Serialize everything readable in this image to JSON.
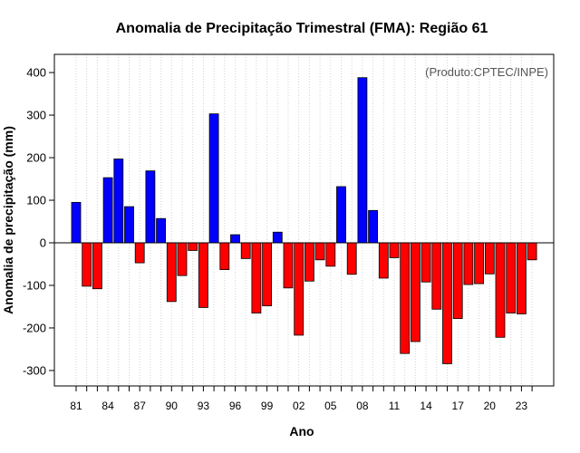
{
  "chart_data": {
    "type": "bar",
    "title": "Anomalia de Precipitação Trimestral (FMA): Região 61",
    "xlabel": "Ano",
    "ylabel": "Anomalia de precipitação (mm)",
    "annotation": "(Produto:CPTEC/INPE)",
    "ylim": [
      -330,
      430
    ],
    "yticks": [
      -300,
      -200,
      -100,
      0,
      100,
      200,
      300,
      400
    ],
    "grid": "vertical dotted",
    "positive_color": "#0000ff",
    "negative_color": "#ff0000",
    "categories": [
      "1981",
      "1982",
      "1983",
      "1984",
      "1985",
      "1986",
      "1987",
      "1988",
      "1989",
      "1990",
      "1991",
      "1992",
      "1993",
      "1994",
      "1995",
      "1996",
      "1997",
      "1998",
      "1999",
      "2000",
      "2001",
      "2002",
      "2003",
      "2004",
      "2005",
      "2006",
      "2007",
      "2008",
      "2009",
      "2010",
      "2011",
      "2012",
      "2013",
      "2014",
      "2015",
      "2016",
      "2017",
      "2018",
      "2019",
      "2020",
      "2021",
      "2022",
      "2023",
      "2024"
    ],
    "values": [
      95,
      -102,
      -108,
      153,
      197,
      85,
      -47,
      169,
      57,
      -138,
      -77,
      -18,
      -152,
      303,
      -63,
      19,
      -37,
      -165,
      -148,
      25,
      -106,
      -217,
      -90,
      -40,
      -55,
      132,
      -74,
      388,
      76,
      -83,
      -35,
      -260,
      -232,
      -92,
      -156,
      -284,
      -178,
      -98,
      -96,
      -73,
      -222,
      -165,
      -167,
      -40
    ],
    "xtick_labels": [
      "81",
      "84",
      "87",
      "90",
      "93",
      "96",
      "99",
      "02",
      "05",
      "08",
      "11",
      "14",
      "17",
      "20",
      "23"
    ]
  }
}
